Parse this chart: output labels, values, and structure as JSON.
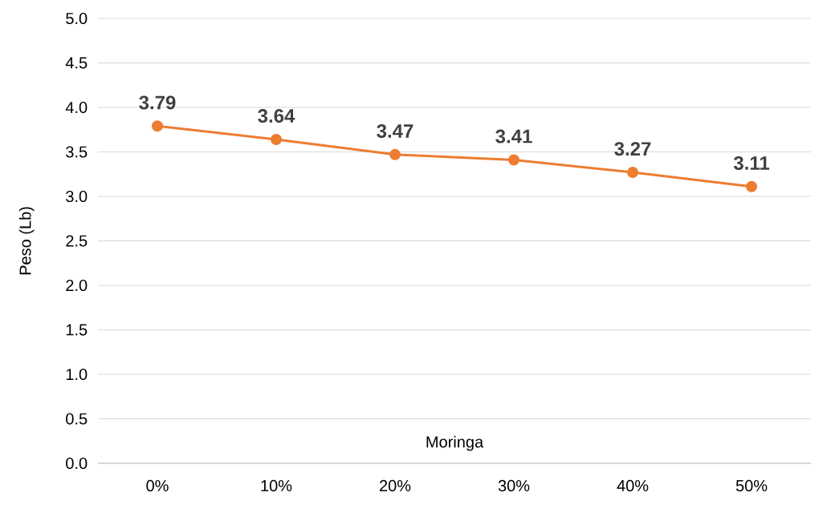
{
  "chart_data": {
    "type": "line",
    "xlabel": "Moringa",
    "ylabel": "Peso (Lb)",
    "categories": [
      "0%",
      "10%",
      "20%",
      "30%",
      "40%",
      "50%"
    ],
    "series": [
      {
        "color": "#ed7d31",
        "values": [
          3.79,
          3.64,
          3.47,
          3.41,
          3.27,
          3.11
        ],
        "value_labels": [
          "3.79",
          "3.64",
          "3.47",
          "3.41",
          "3.27",
          "3.11"
        ]
      }
    ],
    "ylim": [
      0,
      5
    ],
    "yticks": [
      {
        "value": 0,
        "label": "0.0"
      },
      {
        "value": 0.5,
        "label": "0.5"
      },
      {
        "value": 1,
        "label": "1.0"
      },
      {
        "value": 1.5,
        "label": "1.5"
      },
      {
        "value": 2,
        "label": "2.0"
      },
      {
        "value": 2.5,
        "label": "2.5"
      },
      {
        "value": 3,
        "label": "3.0"
      },
      {
        "value": 3.5,
        "label": "3.5"
      },
      {
        "value": 4,
        "label": "4.0"
      },
      {
        "value": 4.5,
        "label": "4.5"
      },
      {
        "value": 5,
        "label": "5.0"
      }
    ],
    "grid": "y",
    "marker": "circle",
    "line_style": "solid"
  }
}
